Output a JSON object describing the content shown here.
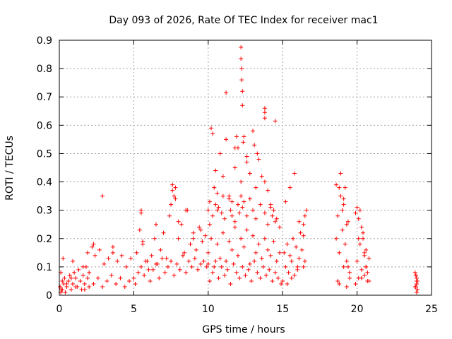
{
  "chart_data": {
    "type": "scatter",
    "title": "Day 093 of 2026, Rate Of TEC Index for receiver mac1",
    "xlabel": "GPS time / hours",
    "ylabel": "ROTI / TECUs",
    "xlim": [
      0,
      25
    ],
    "ylim": [
      0,
      0.9
    ],
    "xticks": [
      0,
      5,
      10,
      15,
      20,
      25
    ],
    "xtick_labels": [
      "0",
      "5",
      "10",
      "15",
      "20",
      "25"
    ],
    "yticks": [
      0,
      0.1,
      0.2,
      0.3,
      0.4,
      0.5,
      0.6,
      0.7,
      0.8,
      0.9
    ],
    "ytick_labels": [
      "0",
      "0.1",
      "0.2",
      "0.3",
      "0.4",
      "0.5",
      "0.6",
      "0.7",
      "0.8",
      "0.9"
    ],
    "grid": true,
    "marker": "+",
    "marker_color": "#ff0000",
    "series": [
      {
        "x": [
          0.05,
          0.1,
          0.15,
          0.2,
          0.25,
          0.3,
          0.35,
          0.4,
          0.5,
          0.6,
          0.7,
          0.8,
          0.9,
          1.0,
          1.1,
          1.2,
          1.3,
          1.4,
          1.5,
          1.6,
          1.7,
          1.8,
          1.9,
          2.0,
          0.2,
          0.5,
          0.8,
          1.1,
          1.4,
          1.7,
          2.0,
          2.3,
          2.6,
          2.9,
          3.2,
          3.5,
          3.8,
          4.1,
          4.4,
          4.7,
          0.1,
          0.9,
          1.6,
          2.2,
          2.4,
          2.7,
          3.0,
          3.3,
          3.6,
          3.9,
          4.2,
          4.5,
          4.8,
          1.9,
          2.3,
          2.9,
          3.6,
          5.0,
          5.2,
          5.4,
          5.5,
          5.6,
          5.8,
          6.0,
          6.2,
          6.4,
          6.6,
          6.8,
          7.0,
          7.2,
          7.4,
          7.6,
          7.8,
          8.0,
          8.2,
          8.4,
          8.6,
          8.8,
          9.0,
          9.2,
          9.4,
          9.6,
          9.8,
          5.1,
          5.3,
          5.5,
          5.7,
          5.9,
          6.1,
          6.3,
          6.5,
          6.7,
          6.9,
          7.1,
          7.3,
          7.5,
          7.7,
          7.9,
          8.1,
          8.3,
          8.5,
          8.7,
          8.9,
          9.1,
          9.3,
          9.5,
          9.7,
          9.9,
          5.5,
          5.6,
          6.5,
          7.5,
          7.6,
          7.7,
          7.8,
          8.0,
          8.5,
          9.0,
          9.5,
          10.0,
          10.1,
          10.2,
          10.3,
          10.4,
          10.5,
          10.6,
          10.8,
          11.0,
          11.2,
          11.4,
          11.6,
          11.8,
          12.0,
          12.2,
          12.4,
          12.6,
          12.8,
          13.0,
          13.2,
          13.4,
          13.6,
          13.8,
          14.0,
          14.2,
          14.4,
          14.6,
          14.8,
          10.0,
          10.2,
          10.4,
          10.6,
          10.8,
          11.0,
          11.2,
          11.4,
          11.6,
          11.8,
          12.0,
          12.2,
          12.4,
          12.6,
          12.8,
          13.0,
          13.2,
          13.4,
          13.6,
          13.8,
          14.0,
          14.2,
          14.4,
          14.6,
          14.8,
          10.1,
          10.3,
          10.5,
          10.7,
          10.9,
          11.1,
          11.3,
          11.5,
          11.7,
          11.9,
          12.1,
          12.3,
          12.5,
          12.7,
          12.9,
          13.1,
          13.3,
          13.5,
          13.7,
          13.9,
          14.1,
          14.3,
          14.5,
          14.7,
          14.9,
          10.0,
          10.1,
          10.3,
          10.5,
          10.6,
          10.7,
          10.9,
          11.0,
          11.1,
          11.4,
          11.5,
          11.6,
          11.8,
          12.0,
          12.1,
          12.2,
          12.3,
          12.6,
          12.8,
          13.0,
          13.2,
          13.5,
          13.8,
          14.0,
          14.2,
          14.3,
          14.5,
          11.2,
          12.2,
          12.2,
          12.25,
          12.25,
          12.3,
          12.3,
          12.35,
          13.8,
          13.8,
          13.8,
          14.5,
          12.4,
          12.6,
          13.1,
          13.3,
          11.8,
          11.9,
          15.0,
          15.2,
          15.4,
          15.6,
          15.8,
          16.0,
          16.2,
          16.4,
          16.5,
          16.6,
          15.1,
          15.3,
          15.5,
          15.7,
          15.9,
          16.1,
          16.3,
          16.5,
          15.2,
          15.5,
          15.8,
          16.1,
          16.4,
          15.3,
          15.6,
          16.0,
          16.4,
          18.6,
          18.7,
          18.8,
          18.9,
          19.0,
          19.1,
          19.2,
          19.3,
          19.4,
          19.5,
          18.6,
          18.8,
          19.0,
          19.2,
          19.4,
          18.8,
          19.3,
          19.1,
          18.7,
          18.9,
          19.1,
          19.3,
          19.5,
          19.9,
          20.0,
          20.1,
          20.2,
          20.3,
          20.4,
          20.5,
          20.6,
          20.7,
          20.8,
          20.0,
          20.2,
          20.4,
          20.6,
          20.8,
          20.3,
          20.6,
          20.1,
          20.5,
          19.9,
          20.1,
          20.3,
          20.5,
          20.7,
          23.9,
          23.95,
          24.0,
          24.05,
          24.0,
          23.95,
          24.05,
          24.0,
          23.9,
          24.0,
          23.95,
          24.05,
          24.0
        ],
        "y": [
          0.03,
          0.08,
          0.02,
          0.05,
          0.13,
          0.04,
          0.06,
          0.01,
          0.03,
          0.05,
          0.07,
          0.02,
          0.04,
          0.08,
          0.06,
          0.03,
          0.09,
          0.05,
          0.02,
          0.07,
          0.04,
          0.1,
          0.06,
          0.03,
          0.02,
          0.04,
          0.06,
          0.03,
          0.05,
          0.02,
          0.08,
          0.04,
          0.06,
          0.03,
          0.05,
          0.07,
          0.04,
          0.06,
          0.03,
          0.05,
          0.01,
          0.12,
          0.1,
          0.17,
          0.14,
          0.16,
          0.11,
          0.13,
          0.15,
          0.12,
          0.14,
          0.1,
          0.13,
          0.15,
          0.18,
          0.35,
          0.17,
          0.06,
          0.15,
          0.23,
          0.3,
          0.18,
          0.12,
          0.09,
          0.14,
          0.2,
          0.11,
          0.16,
          0.22,
          0.13,
          0.28,
          0.39,
          0.34,
          0.2,
          0.25,
          0.15,
          0.3,
          0.18,
          0.22,
          0.16,
          0.24,
          0.19,
          0.21,
          0.04,
          0.08,
          0.1,
          0.07,
          0.12,
          0.05,
          0.09,
          0.11,
          0.06,
          0.13,
          0.08,
          0.1,
          0.12,
          0.07,
          0.11,
          0.09,
          0.14,
          0.08,
          0.12,
          0.1,
          0.13,
          0.09,
          0.11,
          0.12,
          0.1,
          0.29,
          0.19,
          0.25,
          0.32,
          0.37,
          0.35,
          0.38,
          0.26,
          0.3,
          0.2,
          0.23,
          0.11,
          0.25,
          0.59,
          0.57,
          0.38,
          0.44,
          0.3,
          0.5,
          0.42,
          0.55,
          0.35,
          0.28,
          0.45,
          0.52,
          0.4,
          0.33,
          0.47,
          0.43,
          0.58,
          0.38,
          0.48,
          0.42,
          0.4,
          0.37,
          0.32,
          0.3,
          0.27,
          0.24,
          0.15,
          0.2,
          0.1,
          0.18,
          0.13,
          0.22,
          0.12,
          0.19,
          0.16,
          0.24,
          0.14,
          0.2,
          0.17,
          0.23,
          0.11,
          0.21,
          0.15,
          0.18,
          0.13,
          0.2,
          0.16,
          0.14,
          0.19,
          0.12,
          0.15,
          0.05,
          0.08,
          0.12,
          0.06,
          0.1,
          0.07,
          0.09,
          0.04,
          0.11,
          0.08,
          0.06,
          0.1,
          0.07,
          0.09,
          0.05,
          0.12,
          0.08,
          0.06,
          0.1,
          0.07,
          0.09,
          0.05,
          0.08,
          0.06,
          0.04,
          0.3,
          0.33,
          0.28,
          0.32,
          0.36,
          0.31,
          0.29,
          0.35,
          0.27,
          0.34,
          0.3,
          0.33,
          0.26,
          0.32,
          0.29,
          0.35,
          0.31,
          0.28,
          0.34,
          0.3,
          0.27,
          0.32,
          0.29,
          0.25,
          0.31,
          0.28,
          0.26,
          0.715,
          0.875,
          0.835,
          0.8,
          0.76,
          0.72,
          0.67,
          0.54,
          0.66,
          0.645,
          0.625,
          0.615,
          0.56,
          0.49,
          0.53,
          0.5,
          0.52,
          0.56,
          0.05,
          0.1,
          0.08,
          0.12,
          0.07,
          0.1,
          0.22,
          0.25,
          0.28,
          0.3,
          0.15,
          0.18,
          0.14,
          0.2,
          0.17,
          0.13,
          0.16,
          0.12,
          0.33,
          0.38,
          0.43,
          0.26,
          0.21,
          0.04,
          0.06,
          0.09,
          0.1,
          0.39,
          0.05,
          0.38,
          0.43,
          0.3,
          0.34,
          0.38,
          0.12,
          0.1,
          0.06,
          0.2,
          0.15,
          0.23,
          0.18,
          0.26,
          0.04,
          0.03,
          0.1,
          0.28,
          0.35,
          0.32,
          0.25,
          0.08,
          0.29,
          0.31,
          0.27,
          0.3,
          0.24,
          0.2,
          0.15,
          0.1,
          0.08,
          0.05,
          0.12,
          0.18,
          0.22,
          0.16,
          0.13,
          0.06,
          0.1,
          0.2,
          0.14,
          0.04,
          0.06,
          0.09,
          0.07,
          0.05,
          0.08,
          0.07,
          0.06,
          0.05,
          0.04,
          0.03,
          0.02,
          0.01,
          0.03,
          0.05,
          0.07,
          0.02,
          0.04
        ]
      }
    ]
  }
}
